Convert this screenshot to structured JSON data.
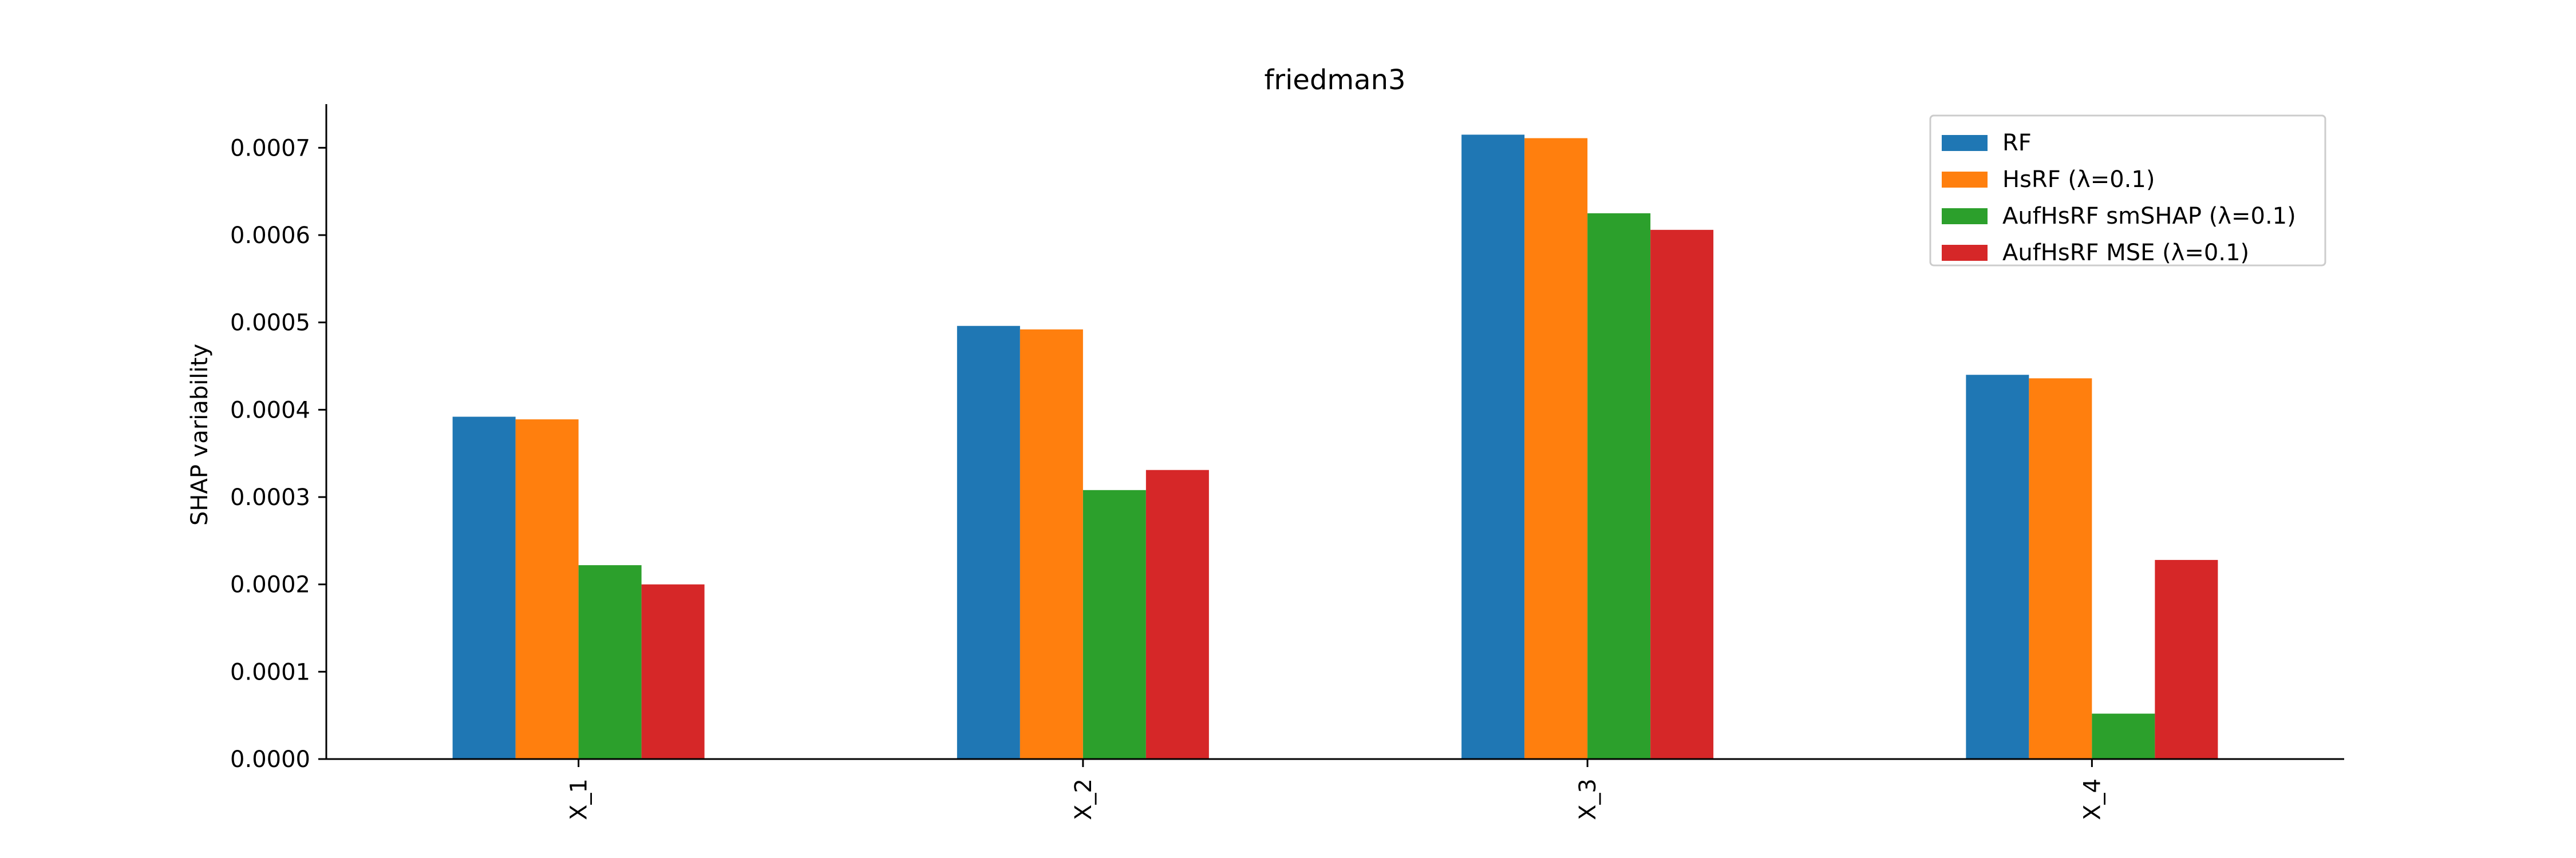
{
  "chart_data": {
    "type": "bar",
    "title": "friedman3",
    "xlabel": "",
    "ylabel": "SHAP variability",
    "categories": [
      "X_1",
      "X_2",
      "X_3",
      "X_4"
    ],
    "ylim": [
      0,
      0.00075
    ],
    "yticks": [
      0,
      0.0001,
      0.0002,
      0.0003,
      0.0004,
      0.0005,
      0.0006,
      0.0007
    ],
    "ytick_labels": [
      "0.0000",
      "0.0001",
      "0.0002",
      "0.0003",
      "0.0004",
      "0.0005",
      "0.0006",
      "0.0007"
    ],
    "grid": false,
    "legend": "top-right",
    "series": [
      {
        "name": "RF",
        "color": "#1f77b4",
        "values": [
          0.000392,
          0.000496,
          0.000715,
          0.00044
        ]
      },
      {
        "name": "HsRF (λ=0.1)",
        "color": "#ff7f0e",
        "values": [
          0.000389,
          0.000492,
          0.000711,
          0.000436
        ]
      },
      {
        "name": "AufHsRF smSHAP (λ=0.1)",
        "color": "#2ca02c",
        "values": [
          0.000222,
          0.000308,
          0.000625,
          5.2e-05
        ]
      },
      {
        "name": "AufHsRF MSE (λ=0.1)",
        "color": "#d62728",
        "values": [
          0.0002,
          0.000331,
          0.000606,
          0.000228
        ]
      }
    ]
  }
}
